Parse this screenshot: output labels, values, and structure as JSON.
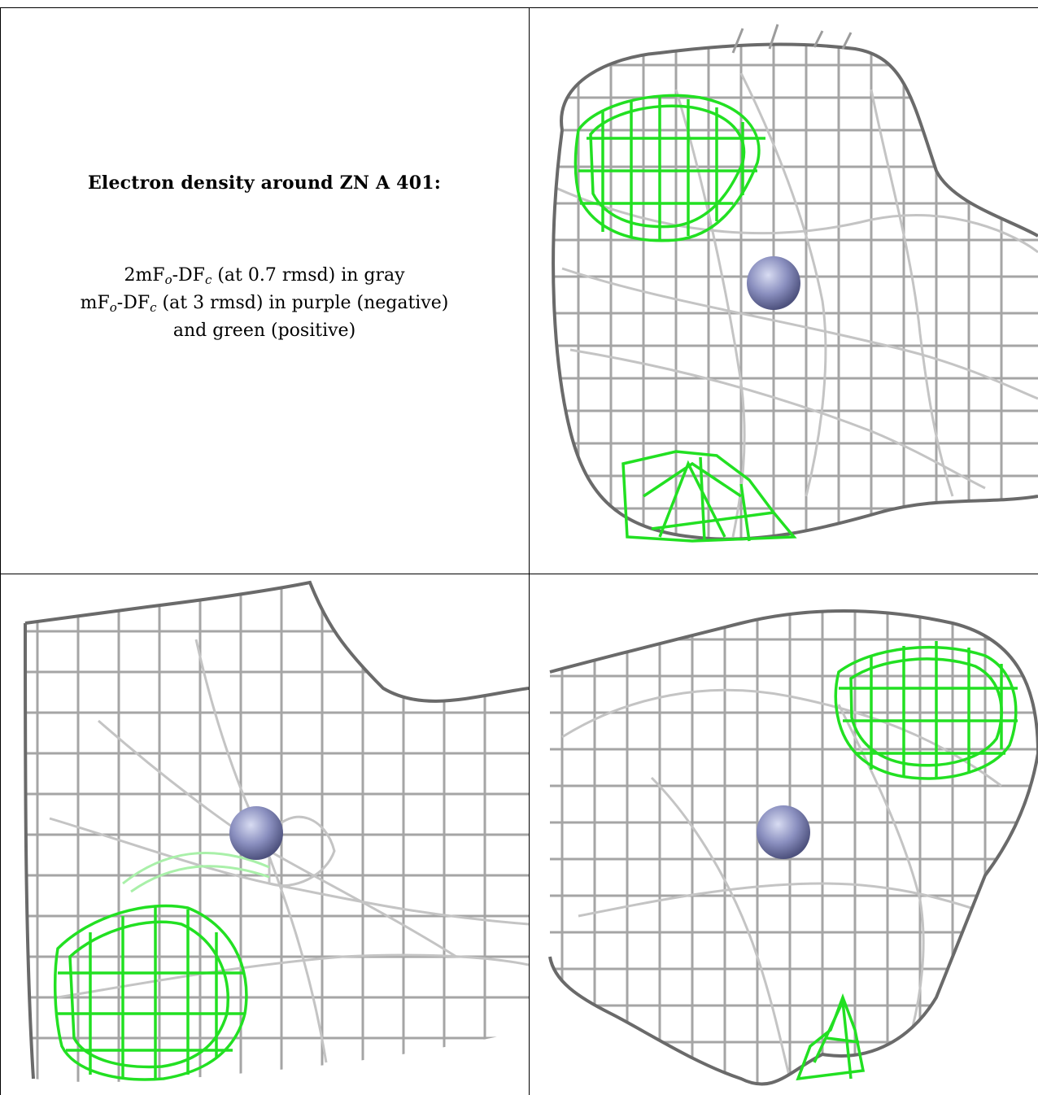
{
  "caption": {
    "title": "Electron density around ZN A 401:",
    "line1": {
      "a": "2mF",
      "sub1": "o",
      "b": "-DF",
      "sub2": "c",
      "c": " (at 0.7 rmsd) in gray"
    },
    "line2": {
      "a": "mF",
      "sub1": "o",
      "b": "-DF",
      "sub2": "c",
      "c": " (at 3 rmsd) in purple (negative)"
    },
    "line3": "and green (positive)"
  },
  "colors": {
    "mesh_gray": "#a0a0a0",
    "mesh_dark": "#5a5a5a",
    "mesh_green": "#22e022",
    "atom": "#8a8fbf"
  },
  "panels": [
    {
      "view": "view-1",
      "atom": "zn-atom"
    },
    {
      "view": "view-2",
      "atom": "zn-atom"
    },
    {
      "view": "view-3",
      "atom": "zn-atom"
    }
  ]
}
